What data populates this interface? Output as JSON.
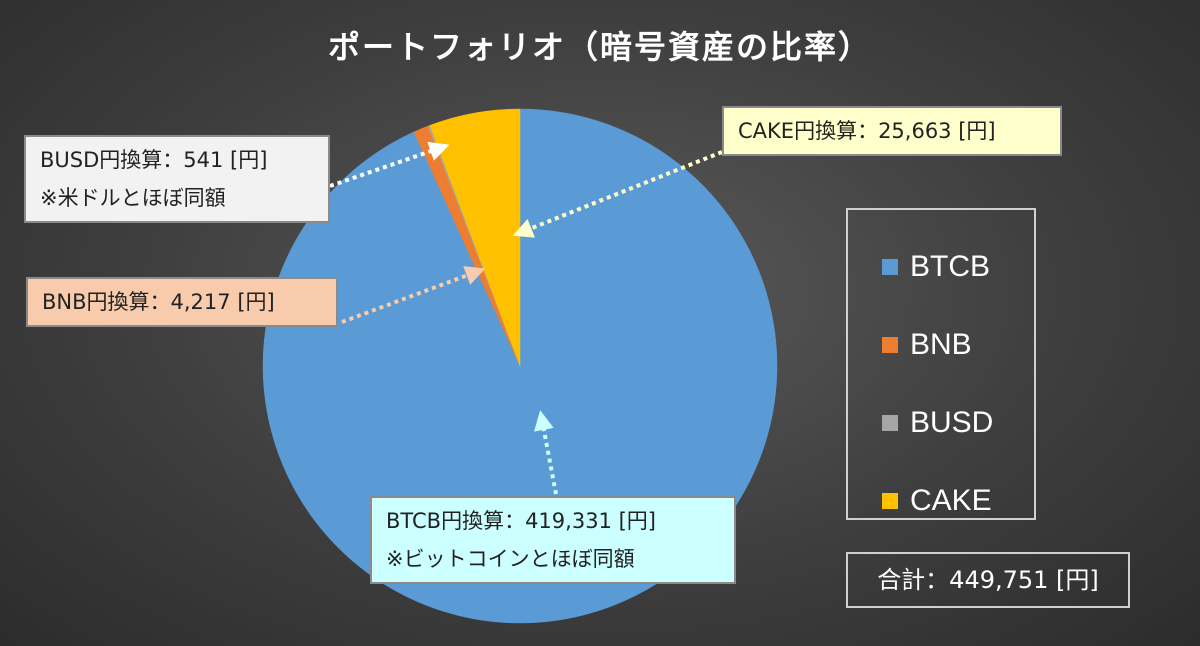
{
  "chart_data": {
    "type": "pie",
    "title": "ポートフォリオ（暗号資産の比率）",
    "categories": [
      "BTCB",
      "BNB",
      "BUSD",
      "CAKE"
    ],
    "values": [
      419331,
      4217,
      541,
      25663
    ],
    "colors": [
      "#5b9bd5",
      "#ed7d31",
      "#a5a5a5",
      "#ffc000"
    ],
    "legend_position": "right",
    "callouts": [
      {
        "series": "CAKE",
        "lines": [
          "CAKE円換算：25,663 [円]"
        ],
        "bg": "#ffffcc"
      },
      {
        "series": "BUSD",
        "lines": [
          "BUSD円換算：541 [円]",
          "※米ドルとほぼ同額"
        ],
        "bg": "#f2f2f2"
      },
      {
        "series": "BNB",
        "lines": [
          "BNB円換算：4,217 [円]"
        ],
        "bg": "#f8cbad"
      },
      {
        "series": "BTCB",
        "lines": [
          "BTCB円換算：419,331 [円]",
          "※ビットコインとほぼ同額"
        ],
        "bg": "#ccffff"
      }
    ],
    "total_label": "合計：449,751 [円]"
  }
}
